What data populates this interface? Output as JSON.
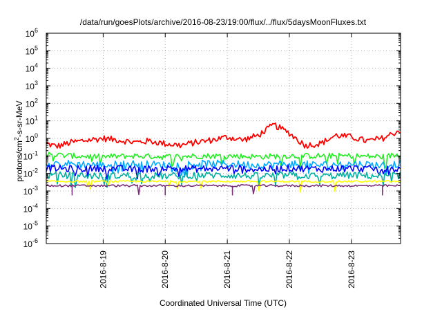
{
  "chart_data": {
    "type": "line",
    "title": "/data/run/goesPlots/archive/2016-08-23/19:00/flux/../flux/5daysMoonFluxes.txt",
    "xlabel": "Coordinated Universal Time (UTC)",
    "ylabel": "protons/cm2-s-sr-MeV",
    "ylabel_parts": {
      "pre": "protons/cm",
      "sup": "2",
      "post": "-s-sr-MeV"
    },
    "y_scale": "log",
    "ylim": [
      1e-06,
      1000000.0
    ],
    "y_ticks": [
      {
        "exp": "-6"
      },
      {
        "exp": "-5"
      },
      {
        "exp": "-4"
      },
      {
        "exp": "-3"
      },
      {
        "exp": "-2"
      },
      {
        "exp": "-1"
      },
      {
        "exp": "0"
      },
      {
        "exp": "1"
      },
      {
        "exp": "2"
      },
      {
        "exp": "3"
      },
      {
        "exp": "4"
      },
      {
        "exp": "5"
      },
      {
        "exp": "6"
      }
    ],
    "xlim": [
      "2016-08-18T02:00",
      "2016-08-23T19:00"
    ],
    "x_ticks": [
      "2016-8-19",
      "2016-8-20",
      "2016-8-21",
      "2016-8-22",
      "2016-8-23"
    ],
    "grid": true,
    "series": [
      {
        "color": "#ff0000",
        "x": [
          "2016-08-18T02:00",
          "2016-08-18T06:00",
          "2016-08-18T12:00",
          "2016-08-18T18:00",
          "2016-08-19T00:00",
          "2016-08-19T06:00",
          "2016-08-19T12:00",
          "2016-08-19T18:00",
          "2016-08-20T00:00",
          "2016-08-20T06:00",
          "2016-08-20T12:00",
          "2016-08-20T18:00",
          "2016-08-21T00:00",
          "2016-08-21T06:00",
          "2016-08-21T12:00",
          "2016-08-21T18:00",
          "2016-08-22T00:00",
          "2016-08-22T06:00",
          "2016-08-22T12:00",
          "2016-08-22T18:00",
          "2016-08-23T00:00",
          "2016-08-23T06:00",
          "2016-08-23T12:00",
          "2016-08-23T19:00"
        ],
        "values": [
          0.5,
          0.35,
          0.6,
          0.8,
          1.0,
          0.8,
          0.6,
          0.7,
          0.5,
          0.4,
          0.6,
          0.8,
          1.2,
          0.8,
          1.5,
          6.0,
          2.0,
          0.4,
          0.5,
          1.5,
          1.2,
          0.7,
          1.0,
          3.0
        ]
      },
      {
        "color": "#22ee22",
        "x": [
          "2016-08-18T02:00",
          "2016-08-18T12:00",
          "2016-08-19T00:00",
          "2016-08-19T12:00",
          "2016-08-20T00:00",
          "2016-08-20T12:00",
          "2016-08-21T00:00",
          "2016-08-21T12:00",
          "2016-08-22T00:00",
          "2016-08-22T12:00",
          "2016-08-23T00:00",
          "2016-08-23T12:00",
          "2016-08-23T19:00"
        ],
        "values": [
          0.12,
          0.1,
          0.09,
          0.1,
          0.09,
          0.1,
          0.1,
          0.09,
          0.1,
          0.1,
          0.1,
          0.09,
          0.12
        ]
      },
      {
        "color": "#00aaff",
        "x": [
          "2016-08-18T02:00",
          "2016-08-18T12:00",
          "2016-08-19T00:00",
          "2016-08-19T12:00",
          "2016-08-20T00:00",
          "2016-08-20T12:00",
          "2016-08-21T00:00",
          "2016-08-21T12:00",
          "2016-08-22T00:00",
          "2016-08-22T12:00",
          "2016-08-23T00:00",
          "2016-08-23T12:00",
          "2016-08-23T19:00"
        ],
        "values": [
          0.04,
          0.035,
          0.03,
          0.035,
          0.03,
          0.035,
          0.035,
          0.03,
          0.035,
          0.03,
          0.035,
          0.03,
          0.035
        ]
      },
      {
        "color": "#0000ff",
        "x": [
          "2016-08-18T02:00",
          "2016-08-18T12:00",
          "2016-08-19T00:00",
          "2016-08-19T12:00",
          "2016-08-20T00:00",
          "2016-08-20T12:00",
          "2016-08-21T00:00",
          "2016-08-21T12:00",
          "2016-08-22T00:00",
          "2016-08-22T12:00",
          "2016-08-23T00:00",
          "2016-08-23T12:00",
          "2016-08-23T19:00"
        ],
        "values": [
          0.02,
          0.018,
          0.02,
          0.017,
          0.02,
          0.018,
          0.02,
          0.017,
          0.02,
          0.018,
          0.02,
          0.017,
          0.018
        ]
      },
      {
        "color": "#00b0a0",
        "x": [
          "2016-08-18T02:00",
          "2016-08-18T12:00",
          "2016-08-19T00:00",
          "2016-08-19T12:00",
          "2016-08-20T00:00",
          "2016-08-20T12:00",
          "2016-08-21T00:00",
          "2016-08-21T12:00",
          "2016-08-22T00:00",
          "2016-08-22T12:00",
          "2016-08-23T00:00",
          "2016-08-23T12:00",
          "2016-08-23T19:00"
        ],
        "values": [
          0.008,
          0.008,
          0.007,
          0.008,
          0.007,
          0.008,
          0.008,
          0.007,
          0.008,
          0.007,
          0.008,
          0.007,
          0.008
        ]
      },
      {
        "color": "#ffff00",
        "x": [
          "2016-08-18T02:00",
          "2016-08-19T00:00",
          "2016-08-20T00:00",
          "2016-08-21T00:00",
          "2016-08-22T00:00",
          "2016-08-23T00:00",
          "2016-08-23T19:00"
        ],
        "values": [
          0.0035,
          0.0035,
          0.0035,
          0.0035,
          0.0035,
          0.0035,
          0.0035
        ]
      },
      {
        "color": "#7a2f7a",
        "x": [
          "2016-08-18T02:00",
          "2016-08-19T00:00",
          "2016-08-20T00:00",
          "2016-08-21T00:00",
          "2016-08-22T00:00",
          "2016-08-23T00:00",
          "2016-08-23T19:00"
        ],
        "values": [
          0.002,
          0.002,
          0.002,
          0.002,
          0.002,
          0.002,
          0.002
        ]
      }
    ]
  }
}
